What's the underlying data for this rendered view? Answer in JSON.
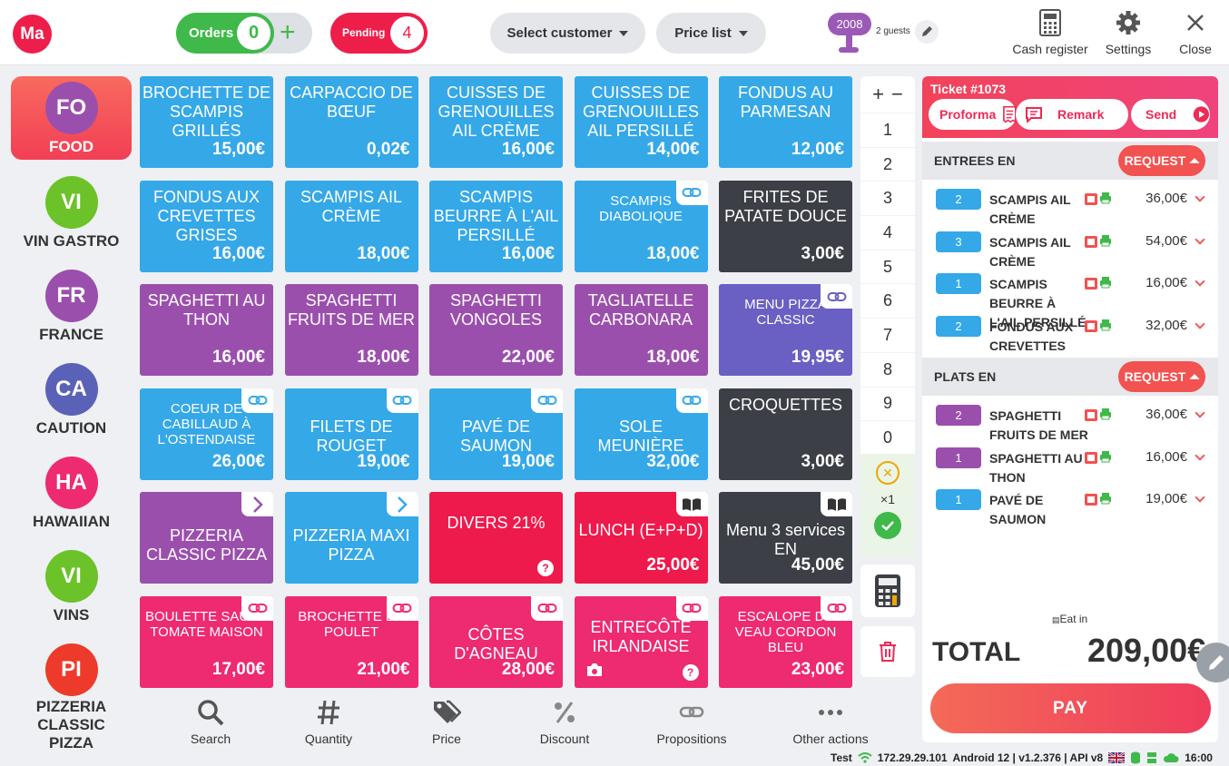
{
  "header": {
    "logo": "Ma",
    "orders_label": "Orders",
    "orders_count": "0",
    "pending_label": "Pending",
    "pending_count": "4",
    "select_customer": "Select customer",
    "price_list": "Price list",
    "table_number": "2008",
    "guests": "2 guests",
    "tools": [
      "Cash register",
      "Settings",
      "Close"
    ]
  },
  "categories": [
    {
      "abbr": "FO",
      "label": "FOOD",
      "color": "#9b4fad",
      "active": true
    },
    {
      "abbr": "VI",
      "label": "VIN GASTRO",
      "color": "#6cc229"
    },
    {
      "abbr": "FR",
      "label": "FRANCE",
      "color": "#9b4fad"
    },
    {
      "abbr": "CA",
      "label": "CAUTION",
      "color": "#5a62b8"
    },
    {
      "abbr": "HA",
      "label": "HAWAIIAN",
      "color": "#ee2a71"
    },
    {
      "abbr": "VI",
      "label": "VINS",
      "color": "#6cc229"
    },
    {
      "abbr": "PI",
      "label": "PIZZERIA CLASSIC PIZZA",
      "color": "#ee3a2a"
    }
  ],
  "products": [
    {
      "name": "BROCHETTE DE SCAMPIS GRILLÉS",
      "price": "15,00€",
      "color": "blue"
    },
    {
      "name": "CARPACCIO DE BŒUF",
      "price": "0,02€",
      "color": "blue"
    },
    {
      "name": "CUISSES DE GRENOUILLES AIL CRÈME",
      "price": "16,00€",
      "color": "blue"
    },
    {
      "name": "CUISSES DE GRENOUILLES AIL PERSILLÉ",
      "price": "14,00€",
      "color": "blue"
    },
    {
      "name": "FONDUS AU PARMESAN",
      "price": "12,00€",
      "color": "blue"
    },
    {
      "name": "FONDUS AUX CREVETTES GRISES",
      "price": "16,00€",
      "color": "blue"
    },
    {
      "name": "SCAMPIS AIL CRÈME",
      "price": "18,00€",
      "color": "blue"
    },
    {
      "name": "SCAMPIS BEURRE À L'AIL PERSILLÉ",
      "price": "16,00€",
      "color": "blue"
    },
    {
      "name": "SCAMPIS DIABOLIQUE",
      "price": "18,00€",
      "color": "blue",
      "badge": "link-icon",
      "small": true
    },
    {
      "name": "FRITES DE PATATE DOUCE",
      "price": "3,00€",
      "color": "dark"
    },
    {
      "name": "SPAGHETTI AU THON",
      "price": "16,00€",
      "color": "purple"
    },
    {
      "name": "SPAGHETTI FRUITS DE MER",
      "price": "18,00€",
      "color": "purple"
    },
    {
      "name": "SPAGHETTI VONGOLES",
      "price": "22,00€",
      "color": "purple"
    },
    {
      "name": "TAGLIATELLE CARBONARA",
      "price": "18,00€",
      "color": "purple"
    },
    {
      "name": "MENU PIZZA CLASSIC",
      "price": "19,95€",
      "color": "indigo",
      "badge": "link-icon",
      "small": true
    },
    {
      "name": "COEUR DE CABILLAUD À L'OSTENDAISE",
      "price": "26,00€",
      "color": "blue",
      "badge": "link-icon",
      "small": true
    },
    {
      "name": "FILETS DE ROUGET",
      "price": "19,00€",
      "color": "blue",
      "badge": "link-icon"
    },
    {
      "name": "PAVÉ DE SAUMON",
      "price": "19,00€",
      "color": "blue",
      "badge": "link-icon"
    },
    {
      "name": "SOLE MEUNIÈRE",
      "price": "32,00€",
      "color": "blue",
      "badge": "link-icon"
    },
    {
      "name": "CROQUETTES",
      "price": "3,00€",
      "color": "dark"
    },
    {
      "name": "PIZZERIA CLASSIC PIZZA",
      "price": "",
      "color": "purple",
      "badge": "chevron-right-icon"
    },
    {
      "name": "PIZZERIA MAXI PIZZA",
      "price": "",
      "color": "blue",
      "badge": "chevron-right-icon"
    },
    {
      "name": "DIVERS 21%",
      "price": "",
      "color": "red",
      "question": true
    },
    {
      "name": "LUNCH (E+P+D)",
      "price": "25,00€",
      "color": "red",
      "badge": "book-icon"
    },
    {
      "name": "Menu 3 services EN",
      "price": "45,00€",
      "color": "dark",
      "badge": "book-icon",
      "nocaps": true
    },
    {
      "name": "BOULETTE SAUCE TOMATE MAISON",
      "price": "17,00€",
      "color": "pink",
      "badge": "link-icon",
      "small": true
    },
    {
      "name": "BROCHETTE DE POULET",
      "price": "21,00€",
      "color": "pink",
      "badge": "link-icon",
      "small": true
    },
    {
      "name": "CÔTES D'AGNEAU",
      "price": "28,00€",
      "color": "pink",
      "badge": "link-icon"
    },
    {
      "name": "ENTRECÔTE IRLANDAISE",
      "price": "",
      "color": "pink",
      "badge": "link-icon",
      "question": true,
      "scale": true
    },
    {
      "name": "ESCALOPE DE VEAU CORDON BLEU",
      "price": "23,00€",
      "color": "pink",
      "badge": "link-icon",
      "small": true
    }
  ],
  "keypad": {
    "keys": [
      "1",
      "2",
      "3",
      "4",
      "5",
      "6",
      "7",
      "8",
      "9",
      "0"
    ],
    "multiplier": "×1"
  },
  "bottom_toolbar": [
    "Search",
    "Quantity",
    "Price",
    "Discount",
    "Propositions",
    "Other actions"
  ],
  "status": {
    "env": "Test",
    "ip": "172.29.29.101",
    "version": "Android 12  |  v1.2.376 | API v8",
    "time": "16:00"
  },
  "ticket": {
    "title": "Ticket #1073",
    "proforma": "Proforma",
    "remark": "Remark",
    "send": "Send",
    "request": "REQUEST",
    "sections": [
      {
        "name": "ENTREES EN",
        "lines": [
          {
            "qty": "2",
            "name": "SCAMPIS AIL CRÈME",
            "price": "36,00€",
            "color": "blue"
          },
          {
            "qty": "3",
            "name": "SCAMPIS AIL CRÈME",
            "price": "54,00€",
            "color": "blue"
          },
          {
            "qty": "1",
            "name": "SCAMPIS BEURRE À L'AIL PERSILLÉ",
            "price": "16,00€",
            "color": "blue"
          },
          {
            "qty": "2",
            "name": "FONDUS AUX CREVETTES",
            "price": "32,00€",
            "color": "blue"
          }
        ]
      },
      {
        "name": "PLATS EN",
        "lines": [
          {
            "qty": "2",
            "name": "SPAGHETTI FRUITS DE MER",
            "price": "36,00€",
            "color": "purple"
          },
          {
            "qty": "1",
            "name": "SPAGHETTI AU THON",
            "price": "16,00€",
            "color": "purple"
          },
          {
            "qty": "1",
            "name": "PAVÉ DE SAUMON",
            "price": "19,00€",
            "color": "blue"
          }
        ]
      }
    ],
    "eat_in": "Eat in",
    "total_label": "TOTAL",
    "total": "209,00€",
    "pay": "PAY"
  }
}
